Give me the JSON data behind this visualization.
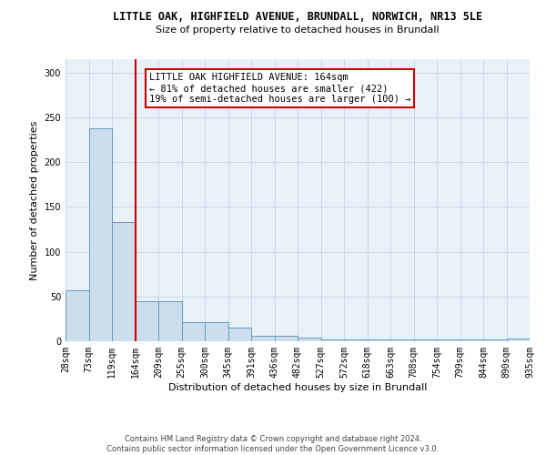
{
  "title_line1": "LITTLE OAK, HIGHFIELD AVENUE, BRUNDALL, NORWICH, NR13 5LE",
  "title_line2": "Size of property relative to detached houses in Brundall",
  "xlabel": "Distribution of detached houses by size in Brundall",
  "ylabel": "Number of detached properties",
  "bin_labels": [
    "28sqm",
    "73sqm",
    "119sqm",
    "164sqm",
    "209sqm",
    "255sqm",
    "300sqm",
    "345sqm",
    "391sqm",
    "436sqm",
    "482sqm",
    "527sqm",
    "572sqm",
    "618sqm",
    "663sqm",
    "708sqm",
    "754sqm",
    "799sqm",
    "844sqm",
    "890sqm",
    "935sqm"
  ],
  "bar_heights": [
    57,
    238,
    133,
    45,
    45,
    21,
    21,
    15,
    6,
    6,
    4,
    2,
    2,
    2,
    2,
    2,
    2,
    2,
    2,
    3
  ],
  "bar_color": "#ccdded",
  "bar_edge_color": "#6699bb",
  "red_line_x": 3.0,
  "annotation_text": "LITTLE OAK HIGHFIELD AVENUE: 164sqm\n← 81% of detached houses are smaller (422)\n19% of semi-detached houses are larger (100) →",
  "annotation_box_color": "white",
  "annotation_box_edge_color": "#cc0000",
  "red_line_color": "#cc0000",
  "ylim": [
    0,
    315
  ],
  "yticks": [
    0,
    50,
    100,
    150,
    200,
    250,
    300
  ],
  "grid_color": "#c8d8e8",
  "bg_color": "#e8f0f8",
  "footer_text": "Contains HM Land Registry data © Crown copyright and database right 2024.\nContains public sector information licensed under the Open Government Licence v3.0.",
  "title_fontsize": 8.5,
  "subtitle_fontsize": 8,
  "axis_label_fontsize": 8,
  "tick_fontsize": 7,
  "annotation_fontsize": 7.5,
  "footer_fontsize": 6
}
